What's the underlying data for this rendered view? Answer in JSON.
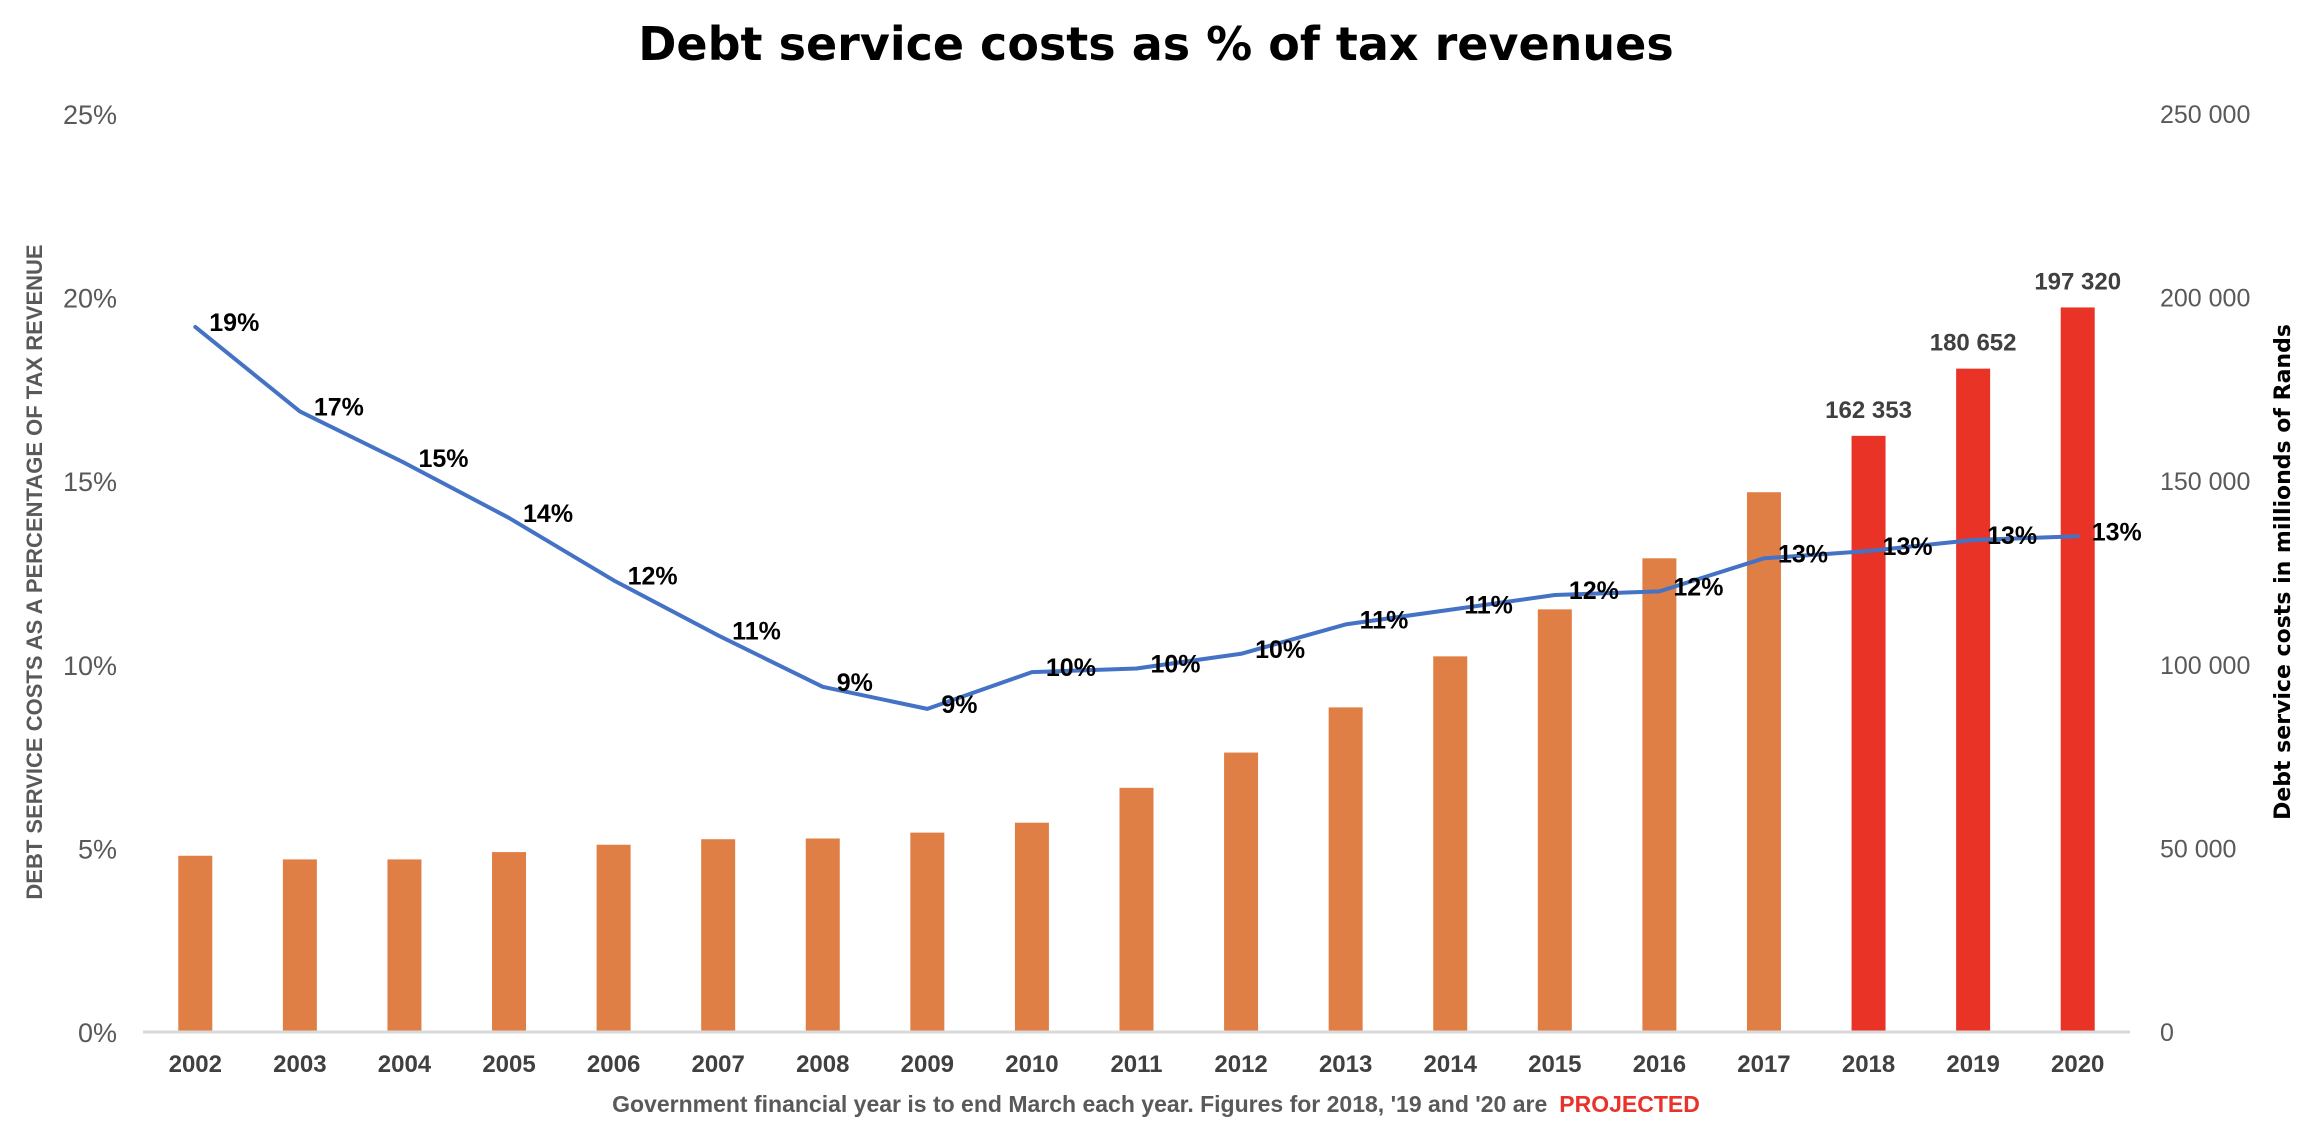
{
  "chart_data": {
    "type": "bar",
    "title": "Debt service costs as % of tax revenues",
    "categories": [
      "2002",
      "2003",
      "2004",
      "2005",
      "2006",
      "2007",
      "2008",
      "2009",
      "2010",
      "2011",
      "2012",
      "2013",
      "2014",
      "2015",
      "2016",
      "2017",
      "2018",
      "2019",
      "2020"
    ],
    "series": [
      {
        "name": "Debt service costs (millions of Rands)",
        "type": "bar",
        "axis": "right",
        "color": "#e07f45",
        "projected_color": "#ea3327",
        "values": [
          48000,
          47000,
          47000,
          49000,
          51000,
          52500,
          52700,
          54300,
          57000,
          66500,
          76100,
          88400,
          102300,
          115100,
          129000,
          147000,
          162353,
          180652,
          197320
        ],
        "projected": [
          false,
          false,
          false,
          false,
          false,
          false,
          false,
          false,
          false,
          false,
          false,
          false,
          false,
          false,
          false,
          false,
          true,
          true,
          true
        ],
        "data_labels": [
          "",
          "",
          "",
          "",
          "",
          "",
          "",
          "",
          "",
          "",
          "",
          "",
          "",
          "",
          "",
          "",
          "162 353",
          "180 652",
          "197 320"
        ]
      },
      {
        "name": "Debt service costs as % of tax revenue",
        "type": "line",
        "axis": "left",
        "color": "#4472c4",
        "values": [
          19.2,
          16.9,
          15.5,
          14.0,
          12.3,
          10.8,
          9.4,
          8.8,
          9.8,
          9.9,
          10.3,
          11.1,
          11.5,
          11.9,
          12.0,
          12.9,
          13.1,
          13.4,
          13.5
        ],
        "data_labels": [
          "19%",
          "17%",
          "15%",
          "14%",
          "12%",
          "11%",
          "9%",
          "9%",
          "10%",
          "10%",
          "10%",
          "11%",
          "11%",
          "12%",
          "12%",
          "13%",
          "13%",
          "13%",
          "13%"
        ]
      }
    ],
    "left_axis": {
      "label": "DEBT SERVICE COSTS AS A PERCENTAGE OF TAX REVENUE",
      "range": [
        0,
        25
      ],
      "ticks": [
        0,
        5,
        10,
        15,
        20,
        25
      ],
      "tick_labels": [
        "0%",
        "5%",
        "10%",
        "15%",
        "20%",
        "25%"
      ]
    },
    "right_axis": {
      "label": "Debt service costs in millionds of Rands",
      "range": [
        0,
        250000
      ],
      "ticks": [
        0,
        50000,
        100000,
        150000,
        200000,
        250000
      ],
      "tick_labels": [
        "0",
        "50 000",
        "100 000",
        "150 000",
        "200 000",
        "250 000"
      ]
    },
    "xlabel": "Government financial year is to end March each year. Figures for 2018, '19 and '20 are",
    "xlabel_accent": "PROJECTED",
    "grid": false,
    "legend": "none"
  }
}
